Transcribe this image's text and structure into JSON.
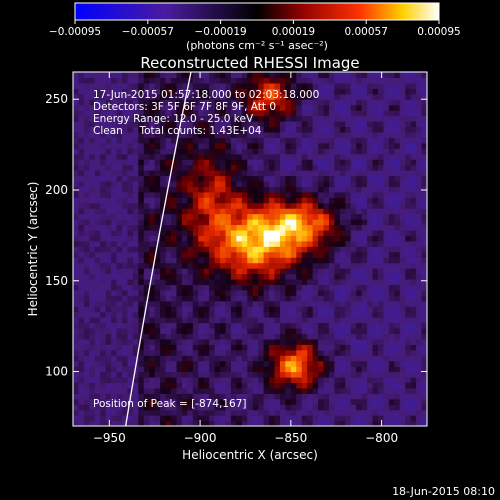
{
  "chart_data": {
    "type": "heatmap",
    "title": "Reconstructed RHESSI Image",
    "xlabel": "Heliocentric X (arcsec)",
    "ylabel": "Heliocentric Y (arcsec)",
    "xlim": [
      -970,
      -775
    ],
    "ylim": [
      70,
      265
    ],
    "xticks": [
      -950,
      -900,
      -850,
      -800
    ],
    "yticks": [
      100,
      150,
      200,
      250
    ],
    "xtick_labels": [
      "−950",
      "−900",
      "−850",
      "−800"
    ],
    "ytick_labels": [
      "100",
      "150",
      "200",
      "250"
    ],
    "colorbar": {
      "range": [
        -0.00095,
        0.00095
      ],
      "tick_values": [
        -0.00095,
        -0.00057,
        -0.00019,
        0.00019,
        0.00057,
        0.00095
      ],
      "tick_labels": [
        "−0.00095",
        "−0.00057",
        "−0.00019",
        "0.00019",
        "0.00057",
        "0.00095"
      ],
      "units_label": "(photons cm⁻² s⁻¹ asec⁻²)",
      "colors": [
        "#0000ff",
        "#4b1b9f",
        "#000000",
        "#8f0000",
        "#ff3000",
        "#ffd000",
        "#ffffff"
      ]
    },
    "annotations": {
      "line1": "17-Jun-2015 01:57:18.000 to 02:03:18.000",
      "line2": "Detectors: 3F 5F 6F 7F 8F 9F, Att 0",
      "line3": "Energy Range: 12.0 - 25.0 keV",
      "line4": "Clean     Total counts: 1.43E+04",
      "peak": "Position of Peak = [-874,167]"
    },
    "peak_position": [
      -874,
      167
    ],
    "sources": [
      {
        "name": "main",
        "x": -870,
        "y": 170,
        "sx": 18,
        "sy": 14,
        "amp": 1.0
      },
      {
        "name": "main-ext",
        "x": -845,
        "y": 180,
        "sx": 14,
        "sy": 10,
        "amp": 0.75
      },
      {
        "name": "south",
        "x": -849,
        "y": 102,
        "sx": 10,
        "sy": 9,
        "amp": 0.92
      },
      {
        "name": "north",
        "x": -863,
        "y": 250,
        "sx": 10,
        "sy": 9,
        "amp": 0.7
      },
      {
        "name": "west-arm",
        "x": -895,
        "y": 195,
        "sx": 12,
        "sy": 18,
        "amp": 0.45
      }
    ],
    "limb_curve": [
      [
        -941,
        70
      ],
      [
        -923,
        178
      ],
      [
        -905,
        265
      ]
    ],
    "footer_date": "18-Jun-2015 08:10"
  }
}
